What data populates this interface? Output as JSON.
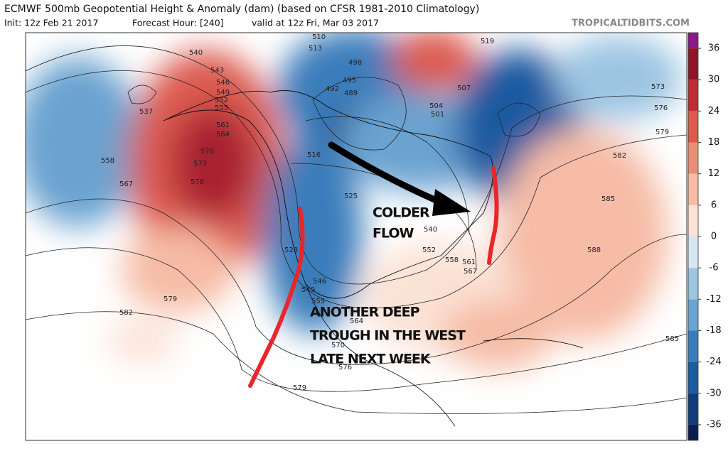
{
  "header": {
    "title": "ECMWF 500mb Geopotential Height & Anomaly (dam) (based on CFSR 1981-2010 Climatology)",
    "init": "Init: 12z Feb 21 2017",
    "forecast_hour": "Forecast Hour: [240]",
    "valid": "valid at 12z Fri, Mar 03 2017",
    "credit": "TROPICALTIDBITS.COM"
  },
  "annotations": {
    "colder_flow": [
      "COLDER",
      "FLOW"
    ],
    "trough": [
      "ANOTHER DEEP",
      "TROUGH IN THE WEST",
      "LATE NEXT WEEK"
    ]
  },
  "contour_labels": [
    540,
    543,
    546,
    549,
    552,
    555,
    561,
    564,
    570,
    573,
    576,
    537,
    558,
    567,
    579,
    582,
    510,
    513,
    498,
    495,
    492,
    489,
    507,
    504,
    501,
    516,
    519,
    525,
    528,
    540,
    552,
    558,
    561,
    567,
    573,
    576,
    579,
    582,
    585,
    588,
    585,
    579,
    570,
    564,
    555,
    549,
    546,
    576
  ],
  "colorbar": {
    "range": [
      -39,
      39
    ],
    "ticks": [
      36,
      30,
      24,
      18,
      12,
      6,
      0,
      -6,
      -12,
      -18,
      -24,
      -30,
      -36
    ],
    "edges": [
      -39,
      -36,
      -30,
      -24,
      -18,
      -12,
      -6,
      0,
      6,
      12,
      18,
      24,
      30,
      36,
      39
    ],
    "colors": [
      "#0b1f4d",
      "#123b7a",
      "#1d5aa0",
      "#3b7dbb",
      "#6aa3d0",
      "#9cc5e2",
      "#d6e7f2",
      "#fbe2d6",
      "#f6bca6",
      "#ec8f78",
      "#dc5a4f",
      "#bd2b35",
      "#8e1626",
      "#8a1a8a"
    ]
  }
}
